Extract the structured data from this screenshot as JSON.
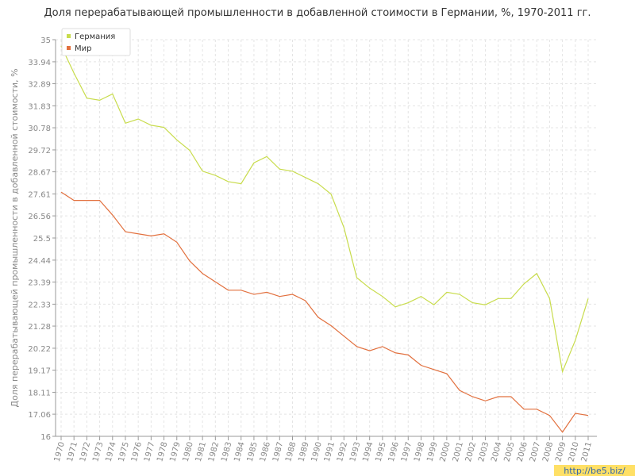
{
  "chart_data": {
    "type": "line",
    "title": "Доля перерабатывающей промышленности в добавленной стоимости в Германии, %, 1970-2011 гг.",
    "y_label": "Доля перерабатывающей промышленности в добавленной стоимости, %",
    "categories": [
      "1970",
      "1971",
      "1972",
      "1973",
      "1974",
      "1975",
      "1976",
      "1977",
      "1978",
      "1979",
      "1980",
      "1981",
      "1982",
      "1983",
      "1984",
      "1985",
      "1986",
      "1987",
      "1988",
      "1989",
      "1990",
      "1991",
      "1992",
      "1993",
      "1994",
      "1995",
      "1996",
      "1997",
      "1998",
      "1999",
      "2000",
      "2001",
      "2002",
      "2003",
      "2004",
      "2005",
      "2006",
      "2007",
      "2008",
      "2009",
      "2010",
      "2011"
    ],
    "series": [
      {
        "name": "Германия",
        "color": "#c8dc4c",
        "values": [
          34.7,
          33.4,
          32.2,
          32.1,
          32.4,
          31.0,
          31.2,
          30.9,
          30.8,
          30.2,
          29.7,
          28.7,
          28.5,
          28.2,
          28.1,
          29.1,
          29.4,
          28.8,
          28.7,
          28.4,
          28.1,
          27.6,
          26.0,
          23.6,
          23.1,
          22.7,
          22.2,
          22.4,
          22.7,
          22.3,
          22.9,
          22.8,
          22.4,
          22.3,
          22.6,
          22.6,
          23.3,
          23.8,
          22.6,
          19.1,
          20.6,
          22.6
        ]
      },
      {
        "name": "Мир",
        "color": "#e2703e",
        "values": [
          27.7,
          27.3,
          27.3,
          27.3,
          26.6,
          25.8,
          25.7,
          25.6,
          25.7,
          25.3,
          24.4,
          23.8,
          23.4,
          23.0,
          23.0,
          22.8,
          22.9,
          22.7,
          22.8,
          22.5,
          21.7,
          21.3,
          20.8,
          20.3,
          20.1,
          20.3,
          20.0,
          19.9,
          19.4,
          19.2,
          19.0,
          18.2,
          17.9,
          17.7,
          17.9,
          17.9,
          17.3,
          17.3,
          17.0,
          16.2,
          17.1,
          17.0
        ]
      }
    ],
    "ylim": [
      16,
      35
    ],
    "yticks": [
      16,
      17.06,
      18.11,
      19.17,
      20.22,
      21.28,
      22.33,
      23.39,
      24.44,
      25.5,
      26.56,
      27.61,
      28.67,
      29.72,
      30.78,
      31.83,
      32.89,
      33.94,
      35
    ],
    "grid": true,
    "legend": "top-left"
  },
  "watermark": "http://be5.biz/"
}
